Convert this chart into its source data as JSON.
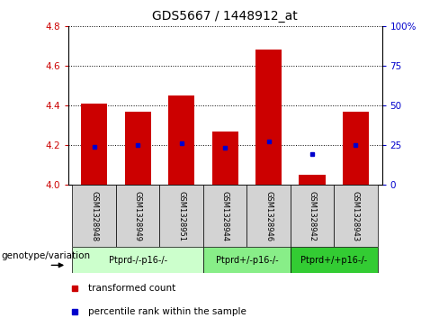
{
  "title": "GDS5667 / 1448912_at",
  "samples": [
    "GSM1328948",
    "GSM1328949",
    "GSM1328951",
    "GSM1328944",
    "GSM1328946",
    "GSM1328942",
    "GSM1328943"
  ],
  "bar_values": [
    4.41,
    4.37,
    4.45,
    4.27,
    4.68,
    4.05,
    4.37
  ],
  "blue_dot_values": [
    4.19,
    4.2,
    4.21,
    4.185,
    4.22,
    4.155,
    4.2
  ],
  "ylim": [
    4.0,
    4.8
  ],
  "y2lim": [
    0,
    100
  ],
  "yticks": [
    4.0,
    4.2,
    4.4,
    4.6,
    4.8
  ],
  "y2ticks": [
    0,
    25,
    50,
    75,
    100
  ],
  "bar_color": "#cc0000",
  "dot_color": "#0000cc",
  "bar_width": 0.6,
  "groups": [
    {
      "label": "Ptprd-/-p16-/-",
      "indices": [
        0,
        1,
        2
      ],
      "color": "#ccffcc"
    },
    {
      "label": "Ptprd+/-p16-/-",
      "indices": [
        3,
        4
      ],
      "color": "#88ee88"
    },
    {
      "label": "Ptprd+/+p16-/-",
      "indices": [
        5,
        6
      ],
      "color": "#33cc33"
    }
  ],
  "genotype_label": "genotype/variation",
  "legend_items": [
    {
      "label": "transformed count",
      "color": "#cc0000"
    },
    {
      "label": "percentile rank within the sample",
      "color": "#0000cc"
    }
  ],
  "grid_color": "#000000",
  "tick_color_left": "#cc0000",
  "tick_color_right": "#0000cc",
  "title_fontsize": 10,
  "axis_fontsize": 7.5,
  "sample_fontsize": 6,
  "group_fontsize": 7,
  "legend_fontsize": 7.5,
  "geno_fontsize": 7.5
}
